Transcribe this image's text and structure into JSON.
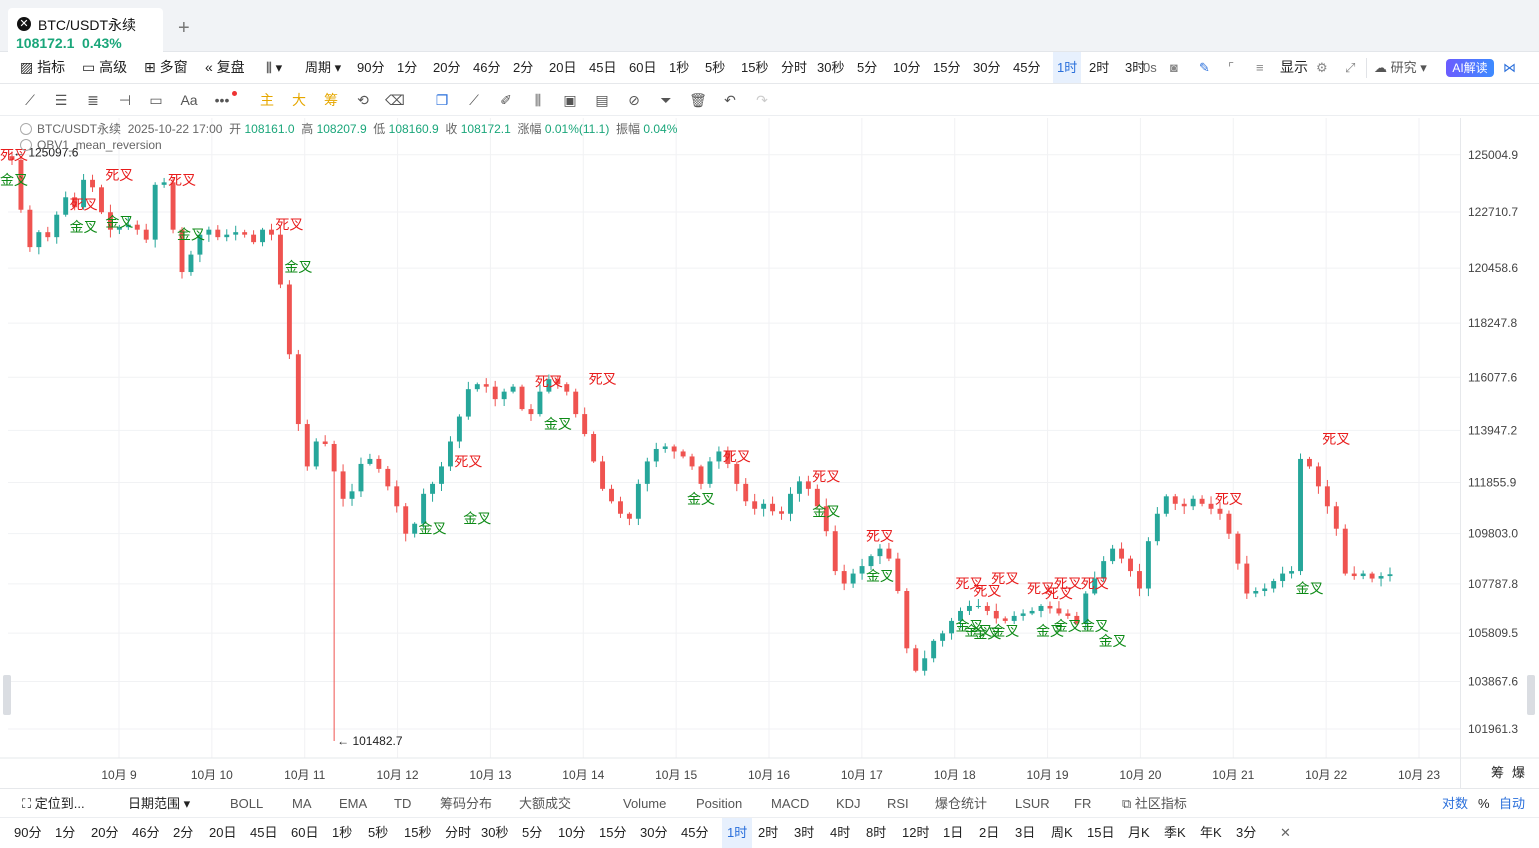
{
  "tab": {
    "icon": "x-circle-icon",
    "title": "BTC/USDT永续",
    "price": "108172.1",
    "change": "0.43%",
    "add_label": "+"
  },
  "toolbar": {
    "indicators": "指标",
    "advanced": "高级",
    "multi_window": "多窗",
    "replay": "复盘",
    "period": "周期",
    "intervals": [
      "90分",
      "1分",
      "20分",
      "46分",
      "2分",
      "20日",
      "45日",
      "60日",
      "1秒",
      "5秒",
      "15秒",
      "分时",
      "30秒",
      "5分",
      "10分",
      "15分",
      "30分",
      "45分",
      "1时",
      "2时",
      "3时"
    ],
    "active_interval": "1时",
    "zero_s": "0s",
    "display": "显示",
    "research": "研究",
    "ai": "AI解读"
  },
  "drawing_tools": {
    "text_tool": "Aa",
    "more": "•••",
    "main": "主",
    "large": "大",
    "chips": "筹"
  },
  "legend": {
    "symbol": "BTC/USDT永续",
    "datetime": "2025-10-22 17:00",
    "open_label": "开",
    "open": "108161.0",
    "high_label": "高",
    "high": "108207.9",
    "low_label": "低",
    "low": "108160.9",
    "close_label": "收",
    "close": "108172.1",
    "change_label": "涨幅",
    "change": "0.01%(11.1)",
    "amp_label": "振幅",
    "amp": "0.04%",
    "indicator": "OBV1_mean_reversion"
  },
  "chart_data": {
    "type": "candlestick",
    "x_ticks": [
      "10月 9",
      "10月 10",
      "10月 11",
      "10月 12",
      "10月 13",
      "10月 14",
      "10月 15",
      "10月 16",
      "10月 17",
      "10月 18",
      "10月 19",
      "10月 20",
      "10月 21",
      "10月 22",
      "10月 23"
    ],
    "y_ticks": [
      "125004.9",
      "122710.7",
      "120458.6",
      "118247.8",
      "116077.6",
      "113947.2",
      "111855.9",
      "109803.0",
      "107787.8",
      "105809.5",
      "103867.6",
      "101961.3"
    ],
    "ylim": [
      101200,
      126000
    ],
    "max_label": "125097.6",
    "min_label": "101482.7",
    "price_path": [
      [
        0,
        124800
      ],
      [
        1,
        122800
      ],
      [
        3,
        121300
      ],
      [
        5,
        121900
      ],
      [
        7,
        121700
      ],
      [
        8,
        122600
      ],
      [
        9,
        123300
      ],
      [
        10,
        122900
      ],
      [
        11,
        124000
      ],
      [
        12,
        123700
      ],
      [
        13,
        122700
      ],
      [
        14,
        122000
      ],
      [
        15,
        122100
      ],
      [
        16,
        122200
      ],
      [
        17,
        122000
      ],
      [
        18,
        121600
      ],
      [
        19,
        123800
      ],
      [
        20,
        123900
      ],
      [
        21,
        122000
      ],
      [
        22,
        120300
      ],
      [
        23,
        121000
      ],
      [
        24,
        121800
      ],
      [
        25,
        122000
      ],
      [
        26,
        121700
      ],
      [
        27,
        121800
      ],
      [
        28,
        121900
      ],
      [
        29,
        121800
      ],
      [
        30,
        121500
      ],
      [
        31,
        122000
      ],
      [
        32,
        121800
      ],
      [
        33,
        119800
      ],
      [
        34,
        117000
      ],
      [
        35,
        114200
      ],
      [
        36,
        112500
      ],
      [
        37,
        113500
      ],
      [
        38,
        113400
      ],
      [
        39,
        112300
      ],
      [
        40,
        111200
      ],
      [
        41,
        111500
      ],
      [
        42,
        112600
      ],
      [
        43,
        112800
      ],
      [
        44,
        112400
      ],
      [
        45,
        111700
      ],
      [
        46,
        110900
      ],
      [
        47,
        109800
      ],
      [
        48,
        110200
      ],
      [
        49,
        111400
      ],
      [
        50,
        111800
      ],
      [
        51,
        112500
      ],
      [
        52,
        113500
      ],
      [
        53,
        114500
      ],
      [
        54,
        115600
      ],
      [
        55,
        115800
      ],
      [
        56,
        115700
      ],
      [
        57,
        115200
      ],
      [
        58,
        115500
      ],
      [
        59,
        115700
      ],
      [
        60,
        114800
      ],
      [
        61,
        114600
      ],
      [
        62,
        115500
      ],
      [
        63,
        116000
      ],
      [
        64,
        115800
      ],
      [
        65,
        115500
      ],
      [
        66,
        114600
      ],
      [
        67,
        113800
      ],
      [
        68,
        112700
      ],
      [
        69,
        111600
      ],
      [
        70,
        111100
      ],
      [
        71,
        110600
      ],
      [
        72,
        110400
      ],
      [
        73,
        111800
      ],
      [
        74,
        112700
      ],
      [
        75,
        113200
      ],
      [
        76,
        113300
      ],
      [
        77,
        113100
      ],
      [
        78,
        112900
      ],
      [
        79,
        112500
      ],
      [
        80,
        111800
      ],
      [
        81,
        112700
      ],
      [
        82,
        113100
      ],
      [
        83,
        112600
      ],
      [
        84,
        111800
      ],
      [
        85,
        111100
      ],
      [
        86,
        110800
      ],
      [
        87,
        111000
      ],
      [
        88,
        110700
      ],
      [
        89,
        110600
      ],
      [
        90,
        111400
      ],
      [
        91,
        111900
      ],
      [
        92,
        111600
      ],
      [
        93,
        110900
      ],
      [
        94,
        109900
      ],
      [
        95,
        108300
      ],
      [
        96,
        107800
      ],
      [
        97,
        108200
      ],
      [
        98,
        108500
      ],
      [
        99,
        108900
      ],
      [
        100,
        109200
      ],
      [
        101,
        108800
      ],
      [
        102,
        107500
      ],
      [
        103,
        105200
      ],
      [
        104,
        104300
      ],
      [
        105,
        104800
      ],
      [
        106,
        105500
      ],
      [
        107,
        105800
      ],
      [
        108,
        106300
      ],
      [
        109,
        106700
      ],
      [
        110,
        106900
      ],
      [
        111,
        106900
      ],
      [
        112,
        106700
      ],
      [
        113,
        106400
      ],
      [
        114,
        106300
      ],
      [
        115,
        106500
      ],
      [
        116,
        106600
      ],
      [
        117,
        106700
      ],
      [
        118,
        106900
      ],
      [
        119,
        106800
      ],
      [
        120,
        106600
      ],
      [
        121,
        106500
      ],
      [
        122,
        106200
      ],
      [
        123,
        107400
      ],
      [
        124,
        108000
      ],
      [
        125,
        108700
      ],
      [
        126,
        109200
      ],
      [
        127,
        108800
      ],
      [
        128,
        108300
      ],
      [
        129,
        107600
      ],
      [
        130,
        109500
      ],
      [
        131,
        110600
      ],
      [
        132,
        111300
      ],
      [
        133,
        111000
      ],
      [
        134,
        110900
      ],
      [
        135,
        111200
      ],
      [
        136,
        111000
      ],
      [
        137,
        110800
      ],
      [
        138,
        110600
      ],
      [
        139,
        109800
      ],
      [
        140,
        108600
      ],
      [
        141,
        107400
      ],
      [
        142,
        107500
      ],
      [
        143,
        107600
      ],
      [
        144,
        107900
      ],
      [
        145,
        108200
      ],
      [
        146,
        108300
      ],
      [
        147,
        112800
      ],
      [
        148,
        112500
      ],
      [
        149,
        111700
      ],
      [
        150,
        110900
      ],
      [
        151,
        110000
      ],
      [
        152,
        108200
      ],
      [
        153,
        108100
      ],
      [
        154,
        108200
      ],
      [
        155,
        108000
      ],
      [
        156,
        108100
      ],
      [
        157,
        108172
      ]
    ],
    "signals": [
      {
        "label": "死叉",
        "i": 0,
        "price": 124800,
        "kind": "dead"
      },
      {
        "label": "金叉",
        "i": 0,
        "price": 123800,
        "kind": "golden"
      },
      {
        "label": "死叉",
        "i": 8,
        "price": 122800,
        "kind": "dead"
      },
      {
        "label": "金叉",
        "i": 8,
        "price": 121900,
        "kind": "golden"
      },
      {
        "label": "死叉",
        "i": 12,
        "price": 124000,
        "kind": "dead"
      },
      {
        "label": "金叉",
        "i": 12,
        "price": 122100,
        "kind": "golden"
      },
      {
        "label": "死叉",
        "i": 19,
        "price": 123800,
        "kind": "dead"
      },
      {
        "label": "金叉",
        "i": 20,
        "price": 121600,
        "kind": "golden"
      },
      {
        "label": "死叉",
        "i": 31,
        "price": 122000,
        "kind": "dead"
      },
      {
        "label": "金叉",
        "i": 32,
        "price": 120300,
        "kind": "golden"
      },
      {
        "label": "死叉",
        "i": 51,
        "price": 112500,
        "kind": "dead"
      },
      {
        "label": "金叉",
        "i": 47,
        "price": 109800,
        "kind": "golden"
      },
      {
        "label": "金叉",
        "i": 52,
        "price": 110200,
        "kind": "golden"
      },
      {
        "label": "死叉",
        "i": 60,
        "price": 115700,
        "kind": "dead"
      },
      {
        "label": "金叉",
        "i": 61,
        "price": 114000,
        "kind": "golden"
      },
      {
        "label": "死叉",
        "i": 66,
        "price": 115800,
        "kind": "dead"
      },
      {
        "label": "金叉",
        "i": 77,
        "price": 111000,
        "kind": "golden"
      },
      {
        "label": "死叉",
        "i": 81,
        "price": 112700,
        "kind": "dead"
      },
      {
        "label": "死叉",
        "i": 91,
        "price": 111900,
        "kind": "dead"
      },
      {
        "label": "金叉",
        "i": 91,
        "price": 110500,
        "kind": "golden"
      },
      {
        "label": "死叉",
        "i": 97,
        "price": 109500,
        "kind": "dead"
      },
      {
        "label": "金叉",
        "i": 97,
        "price": 107900,
        "kind": "golden"
      },
      {
        "label": "死叉",
        "i": 107,
        "price": 107600,
        "kind": "dead"
      },
      {
        "label": "死叉",
        "i": 109,
        "price": 107300,
        "kind": "dead"
      },
      {
        "label": "死叉",
        "i": 111,
        "price": 107800,
        "kind": "dead"
      },
      {
        "label": "金叉",
        "i": 107,
        "price": 105900,
        "kind": "golden"
      },
      {
        "label": "金叉",
        "i": 108,
        "price": 105700,
        "kind": "golden"
      },
      {
        "label": "金叉",
        "i": 109,
        "price": 105600,
        "kind": "golden"
      },
      {
        "label": "金叉",
        "i": 111,
        "price": 105700,
        "kind": "golden"
      },
      {
        "label": "死叉",
        "i": 115,
        "price": 107400,
        "kind": "dead"
      },
      {
        "label": "死叉",
        "i": 117,
        "price": 107200,
        "kind": "dead"
      },
      {
        "label": "死叉",
        "i": 118,
        "price": 107600,
        "kind": "dead"
      },
      {
        "label": "死叉",
        "i": 121,
        "price": 107600,
        "kind": "dead"
      },
      {
        "label": "金叉",
        "i": 116,
        "price": 105700,
        "kind": "golden"
      },
      {
        "label": "金叉",
        "i": 118,
        "price": 105900,
        "kind": "golden"
      },
      {
        "label": "金叉",
        "i": 121,
        "price": 105900,
        "kind": "golden"
      },
      {
        "label": "金叉",
        "i": 123,
        "price": 105300,
        "kind": "golden"
      },
      {
        "label": "死叉",
        "i": 136,
        "price": 111000,
        "kind": "dead"
      },
      {
        "label": "金叉",
        "i": 145,
        "price": 107400,
        "kind": "golden"
      },
      {
        "label": "死叉",
        "i": 148,
        "price": 113400,
        "kind": "dead"
      }
    ]
  },
  "bottom_bar": {
    "locate": "定位到...",
    "date_range": "日期范围",
    "main_indicators": [
      "BOLL",
      "MA",
      "EMA",
      "TD",
      "筹码分布",
      "大额成交"
    ],
    "sub_indicators": [
      "Volume",
      "Position",
      "MACD",
      "KDJ",
      "RSI",
      "爆仓统计",
      "LSUR",
      "FR"
    ],
    "community": "社区指标",
    "log": "对数",
    "percent": "%",
    "auto": "自动",
    "right_icons": [
      "筹",
      "爆"
    ]
  },
  "period_bar": {
    "items": [
      "90分",
      "1分",
      "20分",
      "46分",
      "2分",
      "20日",
      "45日",
      "60日",
      "1秒",
      "5秒",
      "15秒",
      "分时",
      "30秒",
      "5分",
      "10分",
      "15分",
      "30分",
      "45分",
      "1时",
      "2时",
      "3时",
      "4时",
      "8时",
      "12时",
      "1日",
      "2日",
      "3日",
      "周K",
      "15日",
      "月K",
      "季K",
      "年K",
      "3分"
    ],
    "active": "1时",
    "close": "✕"
  },
  "colors": {
    "up": "#26a69a",
    "down": "#ef5350",
    "golden": "#0d8a16",
    "dead": "#e81c1c",
    "accent": "#2a6fdb"
  }
}
